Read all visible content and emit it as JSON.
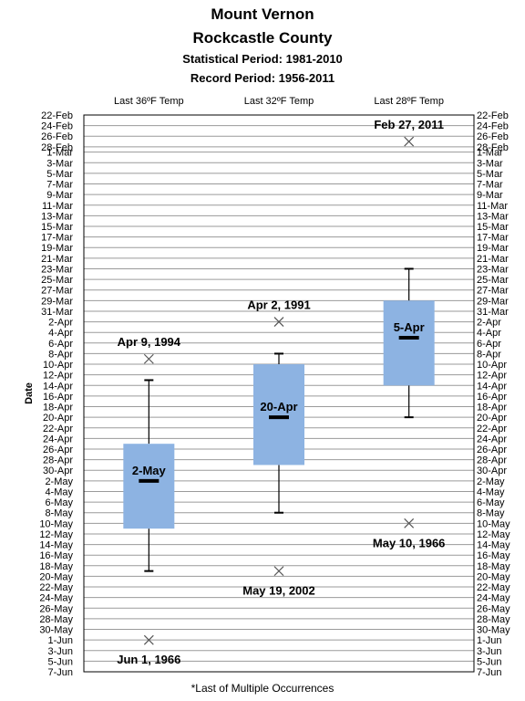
{
  "chart_data": {
    "type": "box",
    "title": "Mount Vernon",
    "subtitle": "Rockcastle County",
    "statistical_period": "Statistical Period: 1981-2010",
    "record_period": "Record Period: 1956-2011",
    "ylabel": "Date",
    "footnote": "*Last of Multiple Occurrences",
    "ylim": [
      "22-Feb",
      "7-Jun"
    ],
    "y_ticks": [
      "22-Feb",
      "24-Feb",
      "26-Feb",
      "28-Feb",
      "1-Mar",
      "3-Mar",
      "5-Mar",
      "7-Mar",
      "9-Mar",
      "11-Mar",
      "13-Mar",
      "15-Mar",
      "17-Mar",
      "19-Mar",
      "21-Mar",
      "23-Mar",
      "25-Mar",
      "27-Mar",
      "29-Mar",
      "31-Mar",
      "2-Apr",
      "4-Apr",
      "6-Apr",
      "8-Apr",
      "10-Apr",
      "12-Apr",
      "14-Apr",
      "16-Apr",
      "18-Apr",
      "20-Apr",
      "22-Apr",
      "24-Apr",
      "26-Apr",
      "28-Apr",
      "30-Apr",
      "2-May",
      "4-May",
      "6-May",
      "8-May",
      "10-May",
      "12-May",
      "14-May",
      "16-May",
      "18-May",
      "20-May",
      "22-May",
      "24-May",
      "26-May",
      "28-May",
      "30-May",
      "1-Jun",
      "3-Jun",
      "5-Jun",
      "7-Jun"
    ],
    "categories": [
      "Last 36ºF Temp",
      "Last 32ºF Temp",
      "Last 28ºF Temp"
    ],
    "boxes": [
      {
        "whisker_low": "13-Apr",
        "q1": "25-Apr",
        "median": "2-May",
        "median_label": "2-May",
        "q3": "11-May",
        "whisker_high": "19-May",
        "record_early": "9-Apr",
        "record_early_label": "Apr 9, 1994",
        "record_late": "1-Jun",
        "record_late_label": "Jun 1, 1966"
      },
      {
        "whisker_low": "8-Apr",
        "q1": "10-Apr",
        "median": "20-Apr",
        "median_label": "20-Apr",
        "q3": "29-Apr",
        "whisker_high": "8-May",
        "record_early": "2-Apr",
        "record_early_label": "Apr 2, 1991",
        "record_late": "19-May",
        "record_late_label": "May 19, 2002"
      },
      {
        "whisker_low": "23-Mar",
        "q1": "29-Mar",
        "median": "5-Apr",
        "median_label": "5-Apr",
        "q3": "14-Apr",
        "whisker_high": "20-Apr",
        "record_early": "27-Feb",
        "record_early_label": "Feb 27, 2011",
        "record_late": "10-May",
        "record_late_label": "May 10, 1966"
      }
    ],
    "colors": {
      "box_fill": "#8DB3E2",
      "median": "#000000",
      "grid": "#9a9a9a"
    },
    "grid": true
  }
}
